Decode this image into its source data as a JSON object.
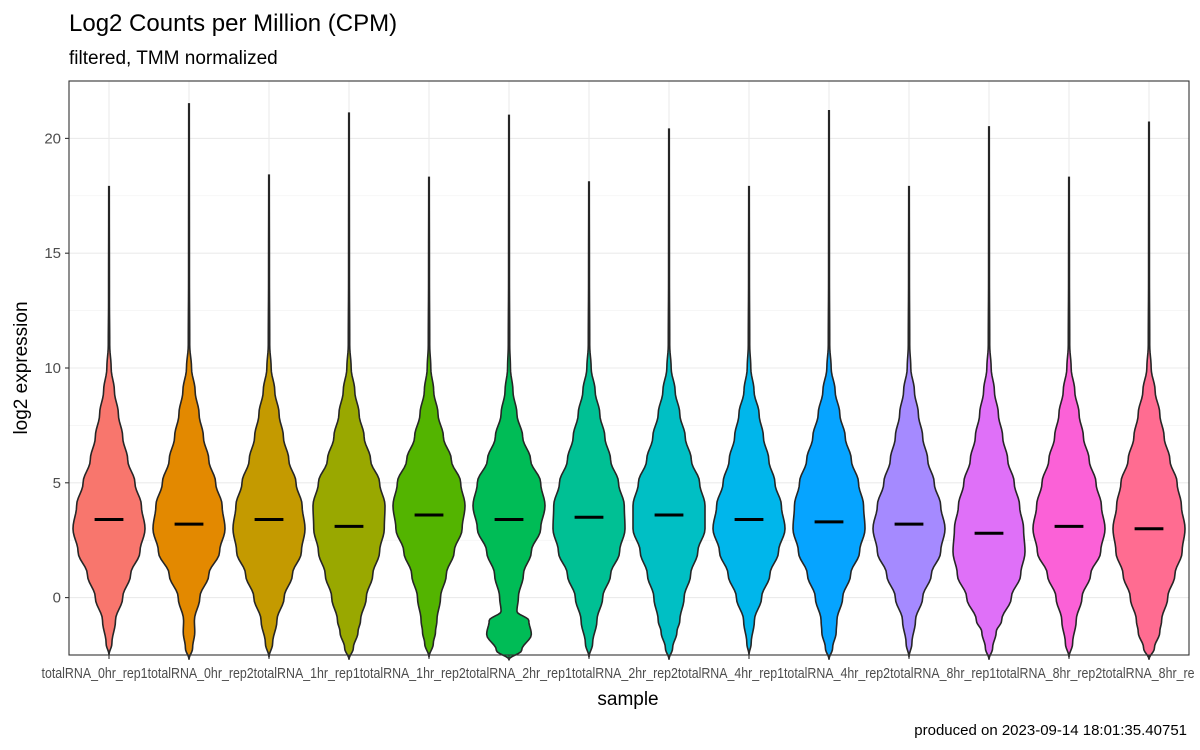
{
  "chart_data": {
    "type": "violin",
    "title": "Log2 Counts per Million (CPM)",
    "subtitle": "filtered, TMM normalized",
    "xlabel": "sample",
    "ylabel": "log2 expression",
    "caption": "produced on 2023-09-14 18:01:35.40751",
    "ylim": [
      -2.5,
      22.5
    ],
    "y_ticks": [
      0,
      5,
      10,
      15,
      20
    ],
    "grid": true,
    "legend": "none",
    "x_tick_text": "totalRNA_0hr_rep1totalRNA_0hr_rep2totalRNA_1hr_rep1totalRNA_1hr_rep2totalRNA_2hr_rep1totalRNA_2hr_rep2totalRNA_4hr_rep1totalRNA_4hr_rep2totalRNA_8hr_rep1totalRNA_8hr_rep2totalRNA_8hr_re",
    "violins": [
      {
        "color": "#F8766D",
        "median": 3.4,
        "min": -2.5,
        "max": 17.9,
        "profile": [
          [
            -2.5,
            0
          ],
          [
            -2,
            0.08
          ],
          [
            -1,
            0.18
          ],
          [
            0,
            0.38
          ],
          [
            1,
            0.6
          ],
          [
            2,
            0.86
          ],
          [
            3,
            1.0
          ],
          [
            4,
            0.9
          ],
          [
            5,
            0.72
          ],
          [
            6,
            0.52
          ],
          [
            7,
            0.38
          ],
          [
            8,
            0.26
          ],
          [
            9,
            0.15
          ],
          [
            10,
            0.06
          ],
          [
            11,
            0.02
          ],
          [
            13,
            0.012
          ],
          [
            17.9,
            0.008
          ]
        ]
      },
      {
        "color": "#E38900",
        "median": 3.2,
        "min": -2.7,
        "max": 21.5,
        "profile": [
          [
            -2.7,
            0
          ],
          [
            -2.2,
            0.1
          ],
          [
            -1.5,
            0.16
          ],
          [
            -1,
            0.15
          ],
          [
            0,
            0.3
          ],
          [
            1,
            0.55
          ],
          [
            2,
            0.85
          ],
          [
            3,
            1.0
          ],
          [
            4,
            0.92
          ],
          [
            5,
            0.74
          ],
          [
            6,
            0.55
          ],
          [
            7,
            0.4
          ],
          [
            8,
            0.28
          ],
          [
            9,
            0.17
          ],
          [
            10,
            0.07
          ],
          [
            11,
            0.02
          ],
          [
            14,
            0.012
          ],
          [
            21.5,
            0.008
          ]
        ]
      },
      {
        "color": "#C49A00",
        "median": 3.4,
        "min": -2.6,
        "max": 18.4,
        "profile": [
          [
            -2.6,
            0
          ],
          [
            -2,
            0.1
          ],
          [
            -1,
            0.22
          ],
          [
            0,
            0.42
          ],
          [
            1,
            0.65
          ],
          [
            2,
            0.9
          ],
          [
            3,
            1.0
          ],
          [
            4,
            0.92
          ],
          [
            5,
            0.75
          ],
          [
            6,
            0.55
          ],
          [
            7,
            0.4
          ],
          [
            8,
            0.28
          ],
          [
            9,
            0.16
          ],
          [
            10,
            0.06
          ],
          [
            11,
            0.02
          ],
          [
            14,
            0.012
          ],
          [
            18.4,
            0.008
          ]
        ]
      },
      {
        "color": "#99A800",
        "median": 3.1,
        "min": -2.7,
        "max": 21.1,
        "profile": [
          [
            -2.7,
            0
          ],
          [
            -2.2,
            0.12
          ],
          [
            -1.5,
            0.25
          ],
          [
            -1,
            0.32
          ],
          [
            0,
            0.48
          ],
          [
            1,
            0.66
          ],
          [
            2,
            0.85
          ],
          [
            3,
            0.98
          ],
          [
            4,
            1.0
          ],
          [
            5,
            0.85
          ],
          [
            6,
            0.6
          ],
          [
            7,
            0.42
          ],
          [
            8,
            0.28
          ],
          [
            9,
            0.16
          ],
          [
            10,
            0.06
          ],
          [
            11,
            0.02
          ],
          [
            14,
            0.012
          ],
          [
            21.1,
            0.008
          ]
        ]
      },
      {
        "color": "#53B400",
        "median": 3.6,
        "min": -2.6,
        "max": 18.3,
        "profile": [
          [
            -2.6,
            0
          ],
          [
            -2,
            0.12
          ],
          [
            -1.5,
            0.18
          ],
          [
            -1,
            0.22
          ],
          [
            0,
            0.32
          ],
          [
            1,
            0.48
          ],
          [
            2,
            0.7
          ],
          [
            3,
            0.92
          ],
          [
            4,
            1.0
          ],
          [
            5,
            0.88
          ],
          [
            6,
            0.62
          ],
          [
            7,
            0.4
          ],
          [
            8,
            0.25
          ],
          [
            9,
            0.13
          ],
          [
            10,
            0.05
          ],
          [
            11,
            0.02
          ],
          [
            14,
            0.012
          ],
          [
            18.3,
            0.008
          ]
        ]
      },
      {
        "color": "#00BC56",
        "median": 3.4,
        "min": -2.7,
        "max": 21.0,
        "profile": [
          [
            -2.7,
            0
          ],
          [
            -2.3,
            0.35
          ],
          [
            -1.6,
            0.62
          ],
          [
            -1,
            0.55
          ],
          [
            -0.6,
            0.22
          ],
          [
            0,
            0.26
          ],
          [
            1,
            0.4
          ],
          [
            2,
            0.62
          ],
          [
            3,
            0.88
          ],
          [
            4,
            1.0
          ],
          [
            5,
            0.88
          ],
          [
            6,
            0.6
          ],
          [
            7,
            0.38
          ],
          [
            8,
            0.22
          ],
          [
            9,
            0.11
          ],
          [
            10,
            0.04
          ],
          [
            11,
            0.02
          ],
          [
            14,
            0.012
          ],
          [
            21,
            0.008
          ]
        ]
      },
      {
        "color": "#00C094",
        "median": 3.5,
        "min": -2.6,
        "max": 18.1,
        "profile": [
          [
            -2.6,
            0
          ],
          [
            -2,
            0.1
          ],
          [
            -1,
            0.22
          ],
          [
            0,
            0.38
          ],
          [
            1,
            0.6
          ],
          [
            2,
            0.85
          ],
          [
            3,
            1.0
          ],
          [
            4,
            0.98
          ],
          [
            5,
            0.82
          ],
          [
            6,
            0.6
          ],
          [
            7,
            0.44
          ],
          [
            8,
            0.3
          ],
          [
            9,
            0.17
          ],
          [
            10,
            0.06
          ],
          [
            11,
            0.02
          ],
          [
            14,
            0.012
          ],
          [
            18.1,
            0.008
          ]
        ]
      },
      {
        "color": "#00BFC4",
        "median": 3.6,
        "min": -2.7,
        "max": 20.4,
        "profile": [
          [
            -2.7,
            0
          ],
          [
            -2.2,
            0.1
          ],
          [
            -1.5,
            0.22
          ],
          [
            -1,
            0.3
          ],
          [
            0,
            0.42
          ],
          [
            1,
            0.6
          ],
          [
            2,
            0.8
          ],
          [
            3,
            1.0
          ],
          [
            4,
            1.0
          ],
          [
            5,
            0.85
          ],
          [
            6,
            0.62
          ],
          [
            7,
            0.45
          ],
          [
            8,
            0.3
          ],
          [
            9,
            0.17
          ],
          [
            10,
            0.06
          ],
          [
            11,
            0.02
          ],
          [
            14,
            0.012
          ],
          [
            20.4,
            0.008
          ]
        ]
      },
      {
        "color": "#00B6EB",
        "median": 3.4,
        "min": -2.5,
        "max": 17.9,
        "profile": [
          [
            -2.5,
            0
          ],
          [
            -2,
            0.06
          ],
          [
            -1,
            0.15
          ],
          [
            0,
            0.35
          ],
          [
            1,
            0.58
          ],
          [
            2,
            0.82
          ],
          [
            3,
            1.0
          ],
          [
            4,
            0.9
          ],
          [
            5,
            0.72
          ],
          [
            6,
            0.55
          ],
          [
            7,
            0.4
          ],
          [
            8,
            0.28
          ],
          [
            9,
            0.14
          ],
          [
            10,
            0.05
          ],
          [
            11,
            0.02
          ],
          [
            14,
            0.012
          ],
          [
            17.9,
            0.008
          ]
        ]
      },
      {
        "color": "#06A4FF",
        "median": 3.3,
        "min": -2.7,
        "max": 21.2,
        "profile": [
          [
            -2.7,
            0
          ],
          [
            -2.2,
            0.1
          ],
          [
            -1.5,
            0.2
          ],
          [
            -1,
            0.22
          ],
          [
            0,
            0.38
          ],
          [
            1,
            0.6
          ],
          [
            2,
            0.85
          ],
          [
            3,
            1.0
          ],
          [
            4,
            0.96
          ],
          [
            5,
            0.82
          ],
          [
            6,
            0.62
          ],
          [
            7,
            0.45
          ],
          [
            8,
            0.3
          ],
          [
            9,
            0.17
          ],
          [
            10,
            0.06
          ],
          [
            11,
            0.02
          ],
          [
            14,
            0.012
          ],
          [
            21.2,
            0.008
          ]
        ]
      },
      {
        "color": "#A58AFF",
        "median": 3.2,
        "min": -2.6,
        "max": 17.9,
        "profile": [
          [
            -2.6,
            0
          ],
          [
            -2,
            0.08
          ],
          [
            -1,
            0.18
          ],
          [
            0,
            0.38
          ],
          [
            1,
            0.62
          ],
          [
            2,
            0.88
          ],
          [
            3,
            1.0
          ],
          [
            4,
            0.88
          ],
          [
            5,
            0.7
          ],
          [
            6,
            0.52
          ],
          [
            7,
            0.38
          ],
          [
            8,
            0.26
          ],
          [
            9,
            0.15
          ],
          [
            10,
            0.05
          ],
          [
            11,
            0.02
          ],
          [
            14,
            0.012
          ],
          [
            17.9,
            0.008
          ]
        ]
      },
      {
        "color": "#DF70F8",
        "median": 2.8,
        "min": -2.7,
        "max": 20.5,
        "profile": [
          [
            -2.7,
            0
          ],
          [
            -2.2,
            0.1
          ],
          [
            -1.5,
            0.2
          ],
          [
            -1,
            0.35
          ],
          [
            0,
            0.62
          ],
          [
            1,
            0.88
          ],
          [
            2,
            1.0
          ],
          [
            3,
            0.96
          ],
          [
            4,
            0.85
          ],
          [
            5,
            0.7
          ],
          [
            6,
            0.52
          ],
          [
            7,
            0.38
          ],
          [
            8,
            0.26
          ],
          [
            9,
            0.15
          ],
          [
            10,
            0.06
          ],
          [
            11,
            0.02
          ],
          [
            14,
            0.012
          ],
          [
            20.5,
            0.008
          ]
        ]
      },
      {
        "color": "#FB61D7",
        "median": 3.1,
        "min": -2.6,
        "max": 18.3,
        "profile": [
          [
            -2.6,
            0
          ],
          [
            -2,
            0.1
          ],
          [
            -1,
            0.2
          ],
          [
            0,
            0.36
          ],
          [
            1,
            0.6
          ],
          [
            2,
            0.88
          ],
          [
            3,
            1.0
          ],
          [
            4,
            0.9
          ],
          [
            5,
            0.75
          ],
          [
            6,
            0.56
          ],
          [
            7,
            0.4
          ],
          [
            8,
            0.28
          ],
          [
            9,
            0.16
          ],
          [
            10,
            0.06
          ],
          [
            11,
            0.02
          ],
          [
            14,
            0.012
          ],
          [
            18.3,
            0.008
          ]
        ]
      },
      {
        "color": "#FF6C91",
        "median": 3.0,
        "min": -2.7,
        "max": 20.7,
        "profile": [
          [
            -2.7,
            0
          ],
          [
            -2.2,
            0.15
          ],
          [
            -1.5,
            0.3
          ],
          [
            -1,
            0.35
          ],
          [
            0,
            0.52
          ],
          [
            1,
            0.72
          ],
          [
            2,
            0.92
          ],
          [
            3,
            1.0
          ],
          [
            4,
            0.9
          ],
          [
            5,
            0.78
          ],
          [
            6,
            0.58
          ],
          [
            7,
            0.42
          ],
          [
            8,
            0.3
          ],
          [
            9,
            0.17
          ],
          [
            10,
            0.06
          ],
          [
            11,
            0.02
          ],
          [
            14,
            0.012
          ],
          [
            20.7,
            0.008
          ]
        ]
      }
    ]
  }
}
